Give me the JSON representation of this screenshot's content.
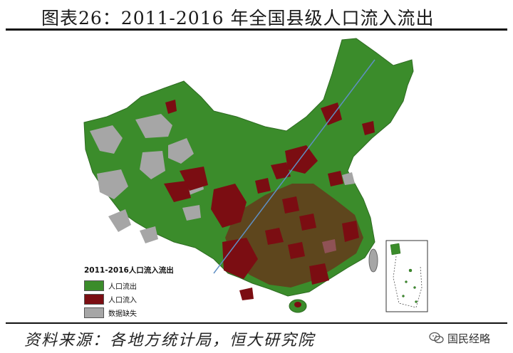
{
  "header": {
    "title": "图表26：2011-2016 年全国县级人口流入流出"
  },
  "legend": {
    "title": "2011-2016人口流入流出",
    "items": [
      {
        "label": "人口流出",
        "color": "#3b8c2b"
      },
      {
        "label": "人口流入",
        "color": "#7b0d12"
      },
      {
        "label": "数据缺失",
        "color": "#a6a6a6"
      }
    ]
  },
  "footer": {
    "source": "资料来源：各地方统计局，恒大研究院"
  },
  "watermark": {
    "text": "国民经略",
    "icon": "wechat-icon"
  },
  "map": {
    "land_color": "#3b8c2b",
    "inflow_color": "#7b0d12",
    "missing_color": "#a6a6a6",
    "line_color": "#5f8fc4",
    "inset_label": "南海诸岛 inset"
  }
}
